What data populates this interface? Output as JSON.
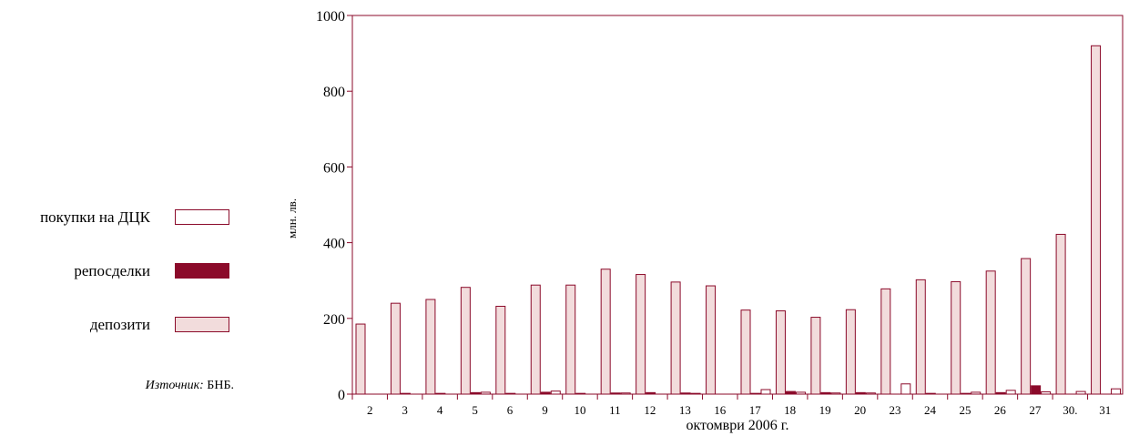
{
  "legend": [
    {
      "label": "покупки на ДЦК",
      "color": "#ffffff"
    },
    {
      "label": "репосделки",
      "color": "#8b0a2a"
    },
    {
      "label": "депозити",
      "color": "#f2dcdc"
    }
  ],
  "source": {
    "prefix": "Източник:",
    "text": "БНБ."
  },
  "colors": {
    "border": "#8b0a2a",
    "deposits": "#f2dcdc",
    "repo": "#8b0a2a",
    "purchases": "#ffffff"
  },
  "chart_data": {
    "type": "bar",
    "title": "",
    "xlabel": "октомври 2006 г.",
    "ylabel": "млн. лв.",
    "ylim": [
      0,
      1000
    ],
    "yticks": [
      0,
      200,
      400,
      600,
      800,
      1000
    ],
    "grid": false,
    "legend_position": "left",
    "categories": [
      "2",
      "3",
      "4",
      "5",
      "6",
      "9",
      "10",
      "11",
      "12",
      "13",
      "16",
      "17",
      "18",
      "19",
      "20",
      "23",
      "24",
      "25",
      "26",
      "27",
      "30.",
      "31"
    ],
    "series": [
      {
        "name": "депозити",
        "values": [
          185,
          240,
          250,
          282,
          232,
          288,
          288,
          330,
          316,
          296,
          286,
          222,
          220,
          203,
          223,
          278,
          302,
          297,
          325,
          358,
          422,
          920
        ]
      },
      {
        "name": "репосделки",
        "values": [
          0,
          2,
          2,
          4,
          2,
          5,
          2,
          3,
          4,
          3,
          0,
          2,
          7,
          4,
          4,
          0,
          2,
          2,
          4,
          22,
          0,
          0
        ]
      },
      {
        "name": "покупки на ДЦК",
        "values": [
          0,
          0,
          0,
          5,
          0,
          8,
          0,
          3,
          0,
          2,
          0,
          12,
          5,
          3,
          3,
          27,
          0,
          5,
          10,
          6,
          7,
          14
        ]
      }
    ]
  }
}
